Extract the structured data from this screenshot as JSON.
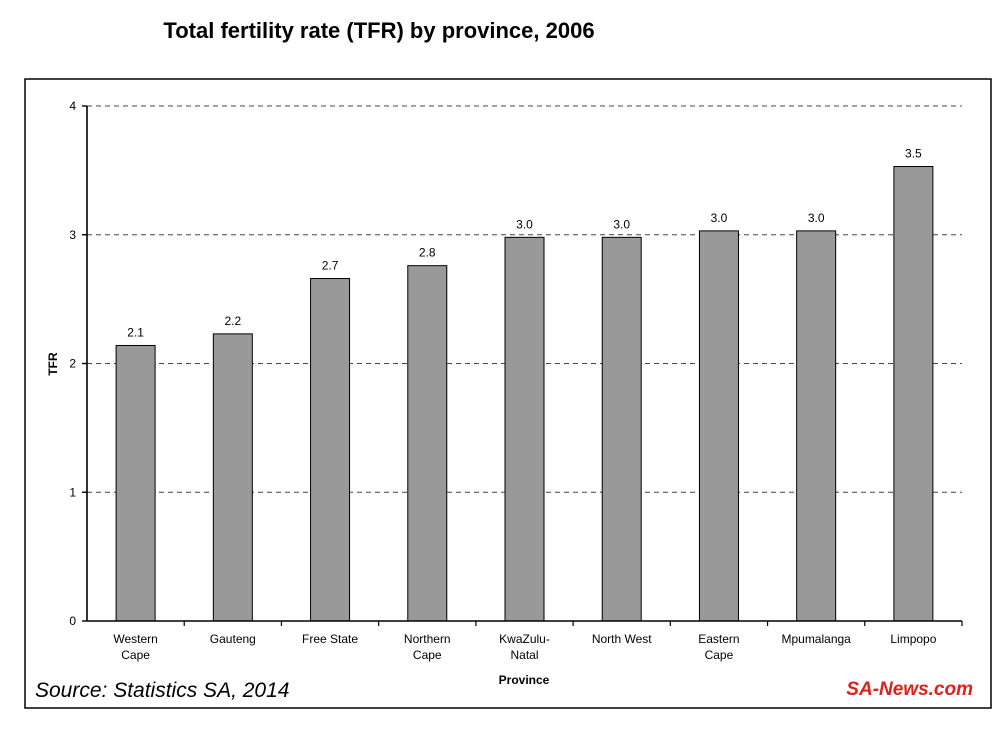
{
  "chart_data": {
    "type": "bar",
    "title": "Total fertility rate (TFR) by province, 2006",
    "xlabel": "Province",
    "ylabel": "TFR",
    "ylim": [
      0,
      4
    ],
    "yticks": [
      "0",
      "1",
      "2",
      "3",
      "4"
    ],
    "grid": "dashed horizontal",
    "categories": [
      [
        "Western",
        "Cape"
      ],
      [
        "Gauteng"
      ],
      [
        "Free State"
      ],
      [
        "Northern",
        "Cape"
      ],
      [
        "KwaZulu-",
        "Natal"
      ],
      [
        "North West"
      ],
      [
        "Eastern",
        "Cape"
      ],
      [
        "Mpumalanga"
      ],
      [
        "Limpopo"
      ]
    ],
    "values": [
      2.14,
      2.23,
      2.66,
      2.76,
      2.98,
      2.98,
      3.03,
      3.03,
      3.53
    ],
    "data_labels": [
      "2.1",
      "2.2",
      "2.7",
      "2.8",
      "3.0",
      "3.0",
      "3.0",
      "3.0",
      "3.5"
    ],
    "bar_color": "#999999"
  },
  "annotations": {
    "source": "Source: Statistics SA, 2014",
    "watermark": "SA-News.com",
    "watermark_color": "#e0201a"
  }
}
